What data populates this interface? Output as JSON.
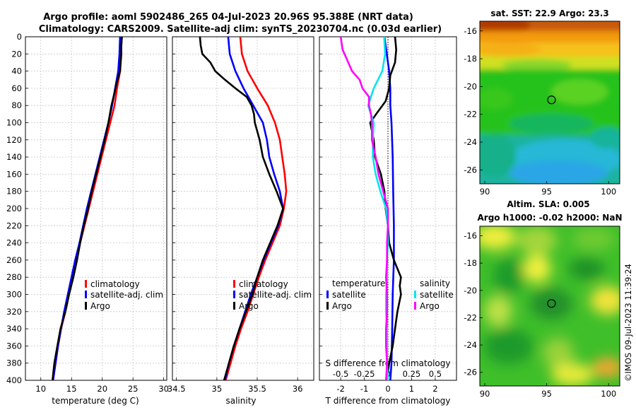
{
  "titles": {
    "line1": "Argo profile: aoml 5902486_265 04-Jul-2023 20.96S 95.388E (NRT data)",
    "line2": "Climatology: CARS2009. Satellite-adj clim: synTS_20230704.nc (0.03d earlier)"
  },
  "watermark": "©IMOS 09-Jul-2023 11:39:24",
  "colors": {
    "climatology": "#ff0000",
    "satellite": "#0000ff",
    "argo": "#000000",
    "sat_salinity": "#00e5ee",
    "argo_salinity": "#ff00ff"
  },
  "chart_data": [
    {
      "type": "line",
      "panel": "temperature",
      "xlabel": "temperature (deg C)",
      "ylabel": "depth",
      "xlim": [
        7.5,
        30.5
      ],
      "ylim": [
        400,
        0
      ],
      "xticks": [
        10,
        15,
        20,
        25,
        30
      ],
      "xtick_labels": [
        "10",
        "15",
        "20",
        "25",
        "30"
      ],
      "yticks": [
        0,
        20,
        40,
        60,
        80,
        100,
        120,
        140,
        160,
        180,
        200,
        220,
        240,
        260,
        280,
        300,
        320,
        340,
        360,
        380,
        400
      ],
      "legend": [
        "climatology",
        "satellite-adj. clim",
        "Argo"
      ],
      "series": [
        {
          "name": "climatology",
          "color": "#ff0000",
          "depth": [
            0,
            20,
            40,
            60,
            80,
            100,
            120,
            140,
            160,
            180,
            200,
            220,
            240,
            260,
            280,
            300,
            320,
            340,
            360,
            380,
            400
          ],
          "values": [
            23.2,
            23.0,
            22.9,
            22.4,
            22.0,
            21.3,
            20.6,
            19.9,
            19.2,
            18.5,
            17.8,
            17.1,
            16.4,
            15.8,
            15.2,
            14.6,
            14.0,
            13.3,
            12.8,
            12.4,
            12.0
          ]
        },
        {
          "name": "satellite-adj. clim",
          "color": "#0000ff",
          "depth": [
            0,
            20,
            40,
            60,
            80,
            100,
            120,
            140,
            160,
            180,
            200,
            220,
            240,
            260,
            280,
            300,
            320,
            340,
            360,
            380,
            400
          ],
          "values": [
            22.9,
            22.8,
            22.6,
            22.1,
            21.6,
            21.0,
            20.3,
            19.6,
            18.9,
            18.2,
            17.5,
            16.9,
            16.3,
            15.6,
            15.0,
            14.4,
            13.8,
            13.3,
            12.8,
            12.4,
            12.0
          ]
        },
        {
          "name": "Argo",
          "color": "#000000",
          "depth": [
            0,
            10,
            20,
            40,
            55,
            65,
            80,
            100,
            120,
            140,
            160,
            180,
            200,
            220,
            240,
            260,
            280,
            300,
            320,
            340,
            360,
            380,
            400
          ],
          "values": [
            23.2,
            23.1,
            23.1,
            22.9,
            22.3,
            22.0,
            21.5,
            21.0,
            20.4,
            19.7,
            19.0,
            18.3,
            17.7,
            17.0,
            16.4,
            15.9,
            15.3,
            14.6,
            14.0,
            13.2,
            12.7,
            12.2,
            11.9
          ]
        }
      ]
    },
    {
      "type": "line",
      "panel": "salinity",
      "xlabel": "salinity",
      "xlim": [
        34.45,
        36.2
      ],
      "ylim": [
        400,
        0
      ],
      "xticks": [
        34.5,
        35,
        35.5,
        36
      ],
      "xtick_labels": [
        "34.5",
        "35",
        "35.5",
        "36"
      ],
      "legend": [
        "climatology",
        "satellite-adj. clim",
        "Argo"
      ],
      "series": [
        {
          "name": "climatology",
          "color": "#ff0000",
          "depth": [
            0,
            20,
            40,
            60,
            80,
            100,
            120,
            140,
            160,
            180,
            200,
            220,
            240,
            260,
            280,
            300,
            320,
            340,
            360,
            380,
            400
          ],
          "values": [
            35.29,
            35.31,
            35.38,
            35.5,
            35.63,
            35.72,
            35.78,
            35.81,
            35.84,
            35.86,
            35.83,
            35.78,
            35.69,
            35.6,
            35.52,
            35.45,
            35.38,
            35.3,
            35.23,
            35.17,
            35.11
          ]
        },
        {
          "name": "satellite-adj. clim",
          "color": "#0000ff",
          "depth": [
            0,
            20,
            40,
            60,
            80,
            100,
            120,
            140,
            160,
            180,
            200,
            220,
            240,
            260,
            280,
            300,
            320,
            340,
            360,
            380,
            400
          ],
          "values": [
            35.14,
            35.16,
            35.23,
            35.33,
            35.45,
            35.57,
            35.62,
            35.65,
            35.71,
            35.78,
            35.82,
            35.76,
            35.67,
            35.58,
            35.5,
            35.42,
            35.35,
            35.28,
            35.21,
            35.15,
            35.1
          ]
        },
        {
          "name": "Argo",
          "color": "#000000",
          "depth": [
            0,
            10,
            20,
            30,
            40,
            50,
            60,
            70,
            80,
            90,
            100,
            120,
            140,
            160,
            180,
            200,
            220,
            240,
            260,
            280,
            300,
            320,
            340,
            360,
            380,
            400
          ],
          "values": [
            34.79,
            34.8,
            34.82,
            34.92,
            34.98,
            35.1,
            35.23,
            35.37,
            35.43,
            35.46,
            35.47,
            35.53,
            35.57,
            35.65,
            35.74,
            35.82,
            35.75,
            35.66,
            35.57,
            35.5,
            35.44,
            35.36,
            35.28,
            35.21,
            35.15,
            35.09
          ]
        }
      ]
    },
    {
      "type": "line",
      "panel": "difference",
      "xlabel": "T difference from climatology",
      "xlabel2": "S difference from climatology",
      "xlim": [
        -2.9,
        2.9
      ],
      "ylim": [
        400,
        0
      ],
      "xticks": [
        -2,
        -1,
        0,
        1,
        2
      ],
      "xtick_labels": [
        "-2",
        "-1",
        "0",
        "1",
        "2"
      ],
      "xticks2": [
        -0.5,
        -0.25,
        0,
        0.25,
        0.5
      ],
      "xtick2_labels": [
        "-0.5",
        "-0.25",
        "0",
        "0.25",
        "0.5"
      ],
      "legend_headers": [
        "temperature",
        "salinity"
      ],
      "legend": [
        "satellite",
        "Argo",
        "satellite",
        "Argo"
      ],
      "series": [
        {
          "name": "T satellite",
          "color": "#0000ff",
          "depth": [
            0,
            20,
            40,
            60,
            80,
            100,
            140,
            180,
            220,
            260,
            300,
            340,
            380,
            400
          ],
          "values": [
            -0.15,
            -0.05,
            0.05,
            0.1,
            0.1,
            0.15,
            0.2,
            0.22,
            0.25,
            0.25,
            0.2,
            0.18,
            0.15,
            0.1
          ]
        },
        {
          "name": "T Argo",
          "color": "#000000",
          "depth": [
            0,
            15,
            30,
            45,
            60,
            75,
            90,
            100,
            120,
            140,
            160,
            180,
            200,
            220,
            240,
            260,
            270,
            280,
            290,
            300,
            320,
            340,
            360,
            380,
            400
          ],
          "values": [
            0.3,
            0.35,
            0.3,
            0.1,
            0.05,
            -0.1,
            -0.5,
            -0.75,
            -0.6,
            -0.55,
            -0.3,
            -0.15,
            -0.1,
            0.0,
            0.05,
            0.25,
            0.4,
            0.55,
            0.5,
            0.55,
            0.4,
            0.3,
            0.2,
            0.05,
            -0.05
          ]
        },
        {
          "name": "S satellite",
          "color": "#00e5ee",
          "depth": [
            0,
            20,
            40,
            60,
            80,
            100,
            120,
            140,
            160,
            180,
            200,
            220,
            240,
            260,
            280,
            300,
            320,
            340,
            360,
            380,
            400
          ],
          "values": [
            -0.04,
            -0.03,
            -0.06,
            -0.15,
            -0.21,
            -0.15,
            -0.16,
            -0.16,
            -0.13,
            -0.08,
            -0.02,
            0.0,
            0.0,
            -0.01,
            -0.01,
            -0.02,
            -0.02,
            -0.01,
            -0.01,
            -0.01,
            0.0
          ]
        },
        {
          "name": "S Argo",
          "color": "#ff00ff",
          "depth": [
            0,
            15,
            30,
            40,
            50,
            60,
            70,
            80,
            90,
            100,
            120,
            140,
            160,
            180,
            200,
            220,
            240,
            260,
            280,
            300,
            320,
            340,
            360,
            380,
            400
          ],
          "values": [
            -0.5,
            -0.48,
            -0.42,
            -0.38,
            -0.3,
            -0.27,
            -0.2,
            -0.2,
            -0.18,
            -0.17,
            -0.17,
            -0.13,
            -0.1,
            -0.05,
            0.0,
            0.0,
            -0.01,
            -0.01,
            -0.02,
            -0.01,
            -0.01,
            -0.02,
            -0.02,
            -0.01,
            -0.02
          ]
        }
      ]
    },
    {
      "type": "heatmap",
      "panel": "sst_map",
      "title": "sat. SST: 22.9 Argo: 23.3",
      "xlim": [
        89.6,
        100.9
      ],
      "ylim": [
        -27,
        -15.3
      ],
      "xticks": [
        90,
        95,
        100
      ],
      "yticks": [
        -16,
        -18,
        -20,
        -22,
        -24,
        -26
      ],
      "xtick_labels": [
        "90",
        "95",
        "100"
      ],
      "ytick_labels": [
        "-16",
        "-18",
        "-20",
        "-22",
        "-24",
        "-26"
      ],
      "marker": {
        "lon": 95.388,
        "lat": -20.96
      }
    },
    {
      "type": "heatmap",
      "panel": "sla_map",
      "title_line1": "Altim. SLA: 0.005",
      "title_line2": "Argo h1000: -0.02 h2000: NaN",
      "xlim": [
        89.6,
        100.9
      ],
      "ylim": [
        -27,
        -15.3
      ],
      "xticks": [
        90,
        95,
        100
      ],
      "yticks": [
        -16,
        -18,
        -20,
        -22,
        -24,
        -26
      ],
      "xtick_labels": [
        "90",
        "95",
        "100"
      ],
      "ytick_labels": [
        "-16",
        "-18",
        "-20",
        "-22",
        "-24",
        "-26"
      ],
      "marker": {
        "lon": 95.388,
        "lat": -20.96
      }
    }
  ]
}
